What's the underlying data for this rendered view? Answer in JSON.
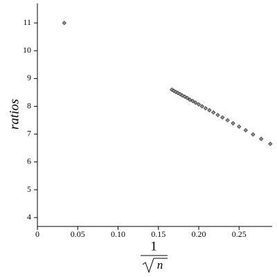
{
  "chart_data": {
    "type": "scatter",
    "x_label": {
      "numerator": "1",
      "radicand": "n"
    },
    "y_label": "ratios",
    "marker_color": "#999999",
    "marker_edge": "#333333",
    "x": [
      0.0333,
      0.1667,
      0.169,
      0.1715,
      0.1741,
      0.1768,
      0.1796,
      0.1826,
      0.1857,
      0.189,
      0.1925,
      0.1961,
      0.2,
      0.2041,
      0.2085,
      0.2132,
      0.2182,
      0.2236,
      0.2294,
      0.2357,
      0.2425,
      0.25,
      0.2582,
      0.2673,
      0.2774,
      0.2887
    ],
    "values": [
      11.0,
      8.6,
      8.56,
      8.52,
      8.48,
      8.44,
      8.39,
      8.35,
      8.3,
      8.24,
      8.19,
      8.13,
      8.07,
      8.0,
      7.93,
      7.86,
      7.78,
      7.69,
      7.6,
      7.5,
      7.39,
      7.27,
      7.14,
      6.99,
      6.83,
      6.65
    ],
    "xlim": [
      0,
      0.291
    ],
    "ylim": [
      3.68,
      11.7
    ],
    "xticks": [
      0,
      0.05,
      {
        "value": 0.1,
        "label": "0.10"
      },
      0.15,
      {
        "value": 0.2,
        "label": "0.20"
      },
      0.25
    ],
    "yticks": [
      4,
      5,
      6,
      7,
      8,
      9,
      10,
      11
    ]
  }
}
